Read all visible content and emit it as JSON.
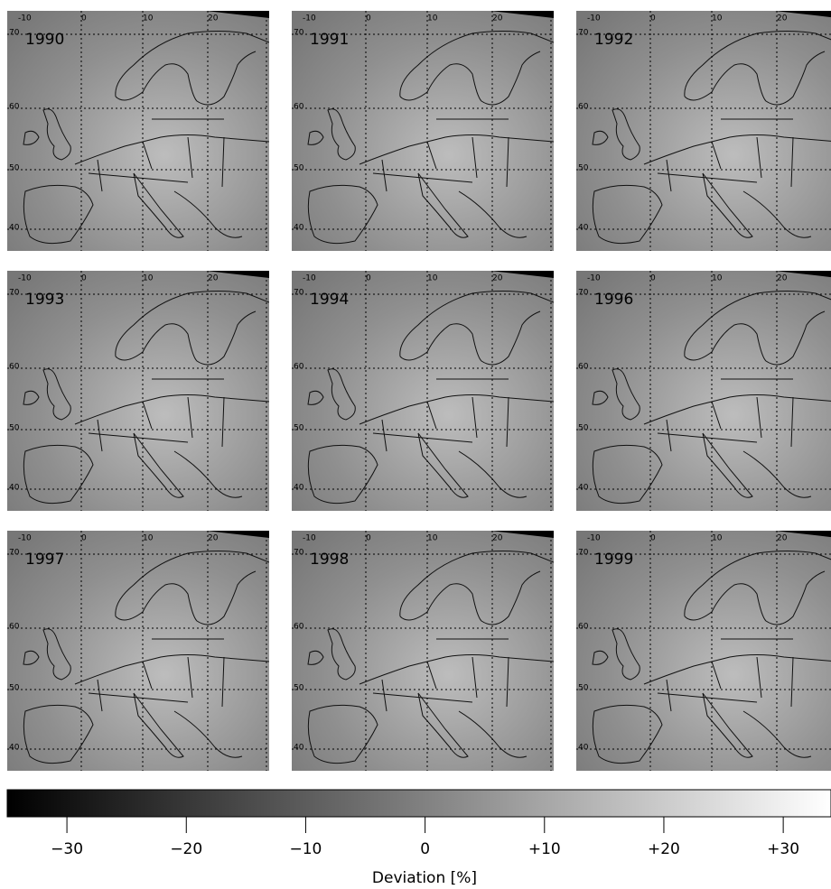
{
  "maps": {
    "lon_labels": [
      "-10",
      "0",
      "10",
      "20"
    ],
    "lat_labels": [
      "70",
      "60",
      "50",
      "40"
    ],
    "panels": [
      {
        "year": "1990"
      },
      {
        "year": "1991"
      },
      {
        "year": "1992"
      },
      {
        "year": "1993"
      },
      {
        "year": "1994"
      },
      {
        "year": "1996"
      },
      {
        "year": "1997"
      },
      {
        "year": "1998"
      },
      {
        "year": "1999"
      }
    ]
  },
  "colorbar": {
    "label": "Deviation [%]",
    "range": [
      -35,
      34
    ],
    "ticks": [
      {
        "value": -30,
        "label": "−30"
      },
      {
        "value": -20,
        "label": "−20"
      },
      {
        "value": -10,
        "label": "−10"
      },
      0,
      {
        "value": 10,
        "label": "+10"
      },
      {
        "value": 20,
        "label": "+20"
      },
      {
        "value": 30,
        "label": "+30"
      }
    ]
  }
}
